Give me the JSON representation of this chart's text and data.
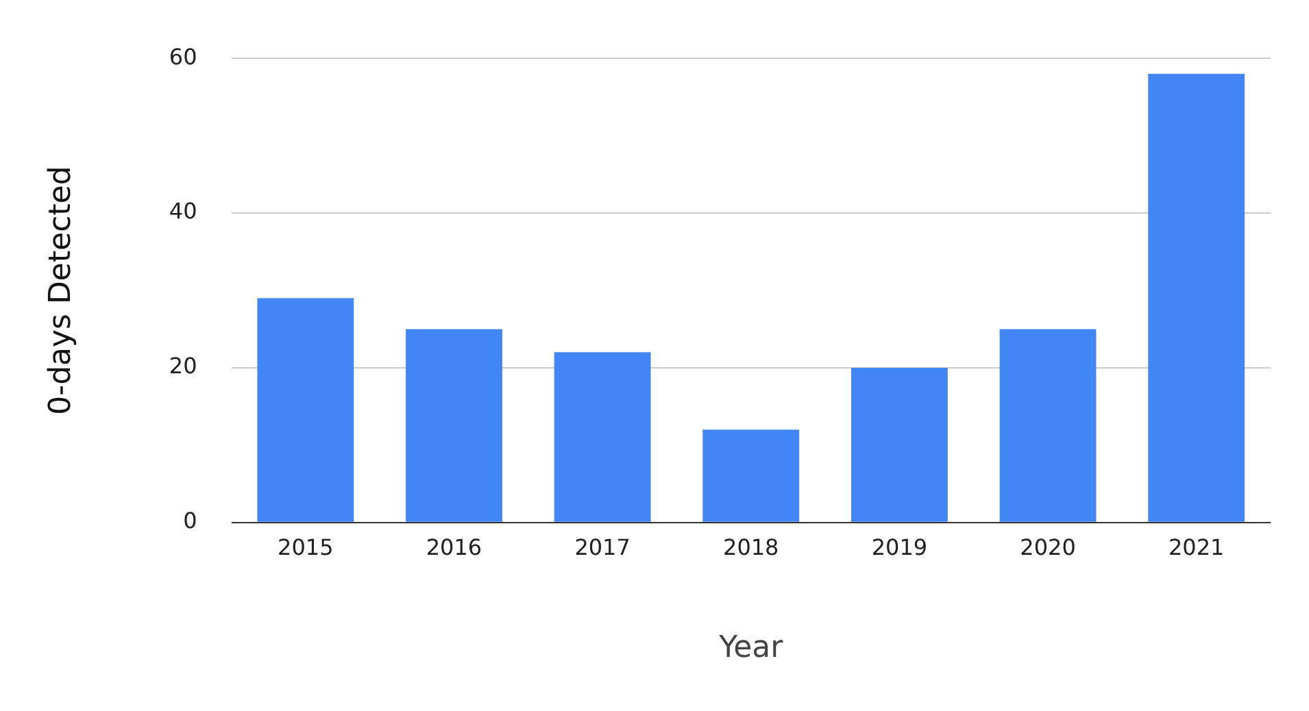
{
  "chart_data": {
    "type": "bar",
    "xlabel": "Year",
    "ylabel": "0-days Detected",
    "categories": [
      "2015",
      "2016",
      "2017",
      "2018",
      "2019",
      "2020",
      "2021"
    ],
    "values": [
      29,
      25,
      22,
      12,
      20,
      25,
      58
    ],
    "color": "#4285f4",
    "ylim": [
      0,
      60
    ],
    "yticks": [
      0,
      20,
      40,
      60
    ],
    "grid": "y"
  }
}
